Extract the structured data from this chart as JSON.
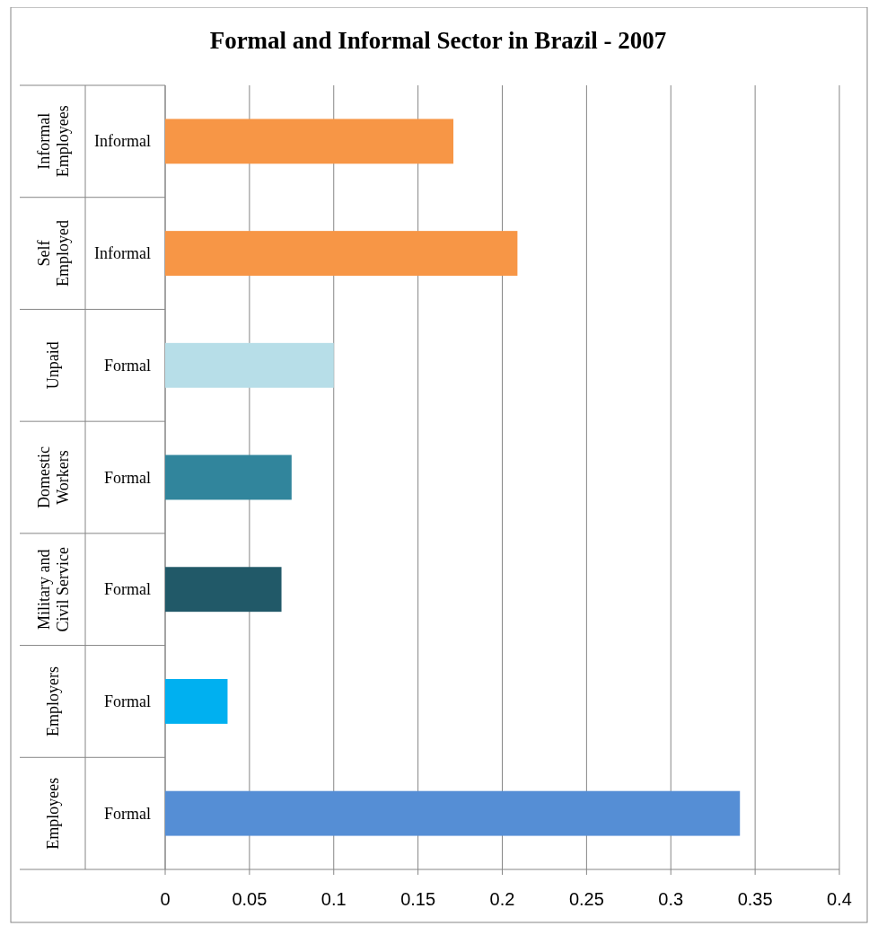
{
  "chart_data": {
    "type": "bar",
    "orientation": "horizontal",
    "title": "Formal and Informal Sector in Brazil - 2007",
    "categories": [
      "Informal",
      "Informal",
      "Formal",
      "Formal",
      "Formal",
      "Formal",
      "Formal"
    ],
    "annotations": [
      "Informal Employees",
      "Self Employed",
      "Unpaid",
      "Domestic Workers",
      "Military and Civil Service",
      "Employers",
      "Employees"
    ],
    "values": [
      0.171,
      0.209,
      0.1,
      0.075,
      0.069,
      0.037,
      0.341
    ],
    "colors": [
      "#f79646",
      "#f79646",
      "#b7dee8",
      "#31859c",
      "#215968",
      "#00b0f0",
      "#558ed5"
    ],
    "xlim": [
      0,
      0.4
    ],
    "xticks": [
      0,
      0.05,
      0.1,
      0.15,
      0.2,
      0.25,
      0.3,
      0.35,
      0.4
    ],
    "grid": "x"
  }
}
